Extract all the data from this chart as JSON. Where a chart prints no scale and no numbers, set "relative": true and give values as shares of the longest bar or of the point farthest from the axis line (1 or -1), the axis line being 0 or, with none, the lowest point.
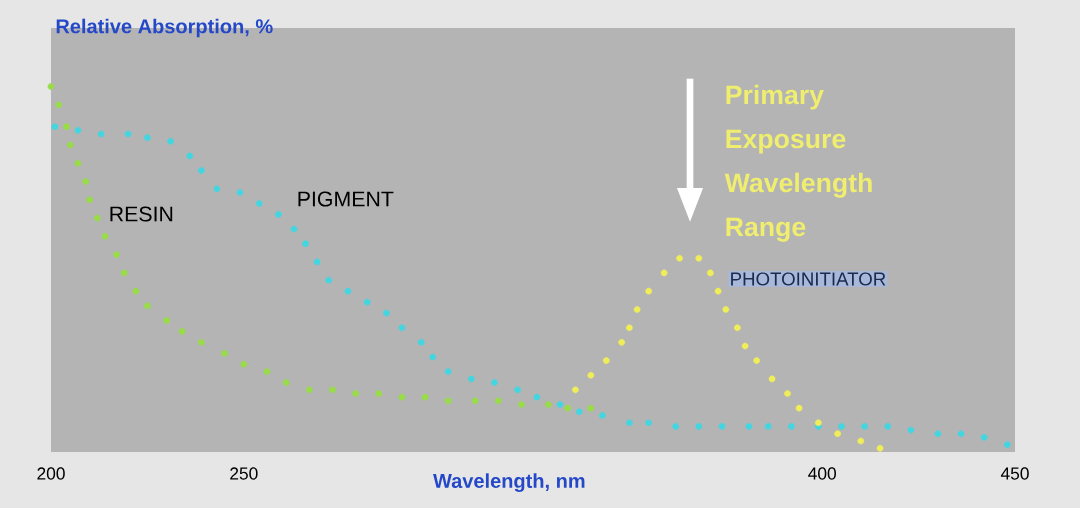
{
  "chart_data": {
    "type": "scatter",
    "relative": true,
    "legend": false,
    "ylabel": "Relative Absorption, %",
    "xlabel": "Wavelength, nm",
    "xlim": [
      200,
      450
    ],
    "xticks": [
      200,
      250,
      400,
      450
    ],
    "annotations": [
      "Primary Exposure Wavelength Range"
    ],
    "series": [
      {
        "name": "RESIN",
        "color": "#98dc48",
        "x": [
          200,
          202,
          204,
          205,
          207,
          209,
          210,
          212,
          214,
          217,
          219,
          222,
          225,
          230,
          234,
          239,
          245,
          250,
          256,
          261,
          267,
          273,
          279,
          285,
          291,
          297,
          303,
          310,
          316,
          322,
          329,
          334,
          340
        ],
        "values": [
          1.0,
          0.95,
          0.89,
          0.84,
          0.79,
          0.74,
          0.69,
          0.64,
          0.59,
          0.54,
          0.49,
          0.44,
          0.4,
          0.36,
          0.33,
          0.3,
          0.27,
          0.24,
          0.22,
          0.19,
          0.17,
          0.17,
          0.16,
          0.16,
          0.15,
          0.15,
          0.14,
          0.14,
          0.14,
          0.13,
          0.13,
          0.12,
          0.12
        ]
      },
      {
        "name": "PIGMENT",
        "color": "#44d6e0",
        "x": [
          201,
          207,
          213,
          220,
          225,
          231,
          236,
          239,
          243,
          249,
          254,
          259,
          263,
          266,
          269,
          272,
          277,
          282,
          287,
          291,
          296,
          299,
          303,
          309,
          315,
          321,
          326,
          332,
          337,
          343,
          350,
          355,
          362,
          368,
          374,
          381,
          386,
          392,
          399,
          405,
          411,
          417,
          423,
          430,
          436,
          442,
          448
        ],
        "values": [
          0.89,
          0.88,
          0.87,
          0.87,
          0.86,
          0.85,
          0.81,
          0.77,
          0.72,
          0.71,
          0.68,
          0.65,
          0.61,
          0.57,
          0.52,
          0.47,
          0.44,
          0.41,
          0.38,
          0.34,
          0.3,
          0.26,
          0.22,
          0.2,
          0.19,
          0.17,
          0.15,
          0.13,
          0.11,
          0.1,
          0.08,
          0.08,
          0.07,
          0.07,
          0.07,
          0.07,
          0.07,
          0.07,
          0.07,
          0.07,
          0.07,
          0.07,
          0.06,
          0.05,
          0.05,
          0.04,
          0.02
        ]
      },
      {
        "name": "PHOTOINITIATOR",
        "color": "#f0ee58",
        "x": [
          336,
          340,
          344,
          348,
          350,
          352,
          355,
          359,
          363,
          368,
          371,
          373,
          375,
          378,
          380,
          383,
          387,
          391,
          394,
          399,
          404,
          410,
          415
        ],
        "values": [
          0.17,
          0.21,
          0.25,
          0.3,
          0.34,
          0.39,
          0.44,
          0.49,
          0.53,
          0.53,
          0.49,
          0.44,
          0.39,
          0.34,
          0.29,
          0.25,
          0.2,
          0.16,
          0.12,
          0.08,
          0.05,
          0.03,
          0.01
        ]
      }
    ]
  }
}
